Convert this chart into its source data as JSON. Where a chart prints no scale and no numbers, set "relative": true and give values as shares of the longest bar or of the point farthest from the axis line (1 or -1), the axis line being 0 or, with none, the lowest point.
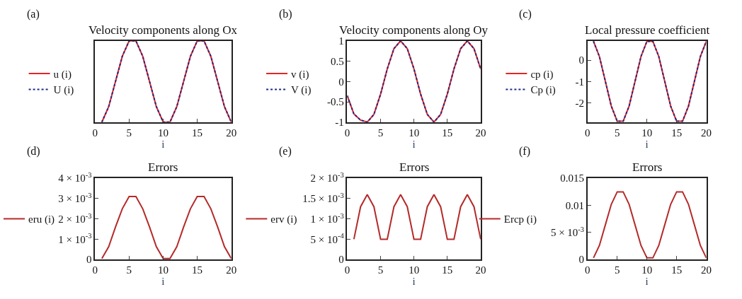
{
  "chart_data": [
    {
      "type": "line",
      "title": "Velocity components along Ox",
      "xlabel": "i",
      "annotations": [
        "(a)"
      ],
      "relative": true,
      "legend": "left",
      "x": [
        1,
        2,
        3,
        4,
        5,
        6,
        7,
        8,
        9,
        10,
        11,
        12,
        13,
        14,
        15,
        16,
        17,
        18,
        19,
        20
      ],
      "xlim": [
        0,
        20
      ],
      "xticks": [
        0,
        5,
        10,
        15,
        20
      ],
      "series": [
        {
          "name": "u (i)",
          "color": "#e32626",
          "line_style": "solid",
          "values": [
            0,
            0.19,
            0.5,
            0.81,
            1,
            1,
            0.81,
            0.5,
            0.19,
            0,
            0,
            0.19,
            0.5,
            0.81,
            1,
            1,
            0.81,
            0.5,
            0.19,
            0
          ]
        },
        {
          "name": "U (i)",
          "color": "#1f2a8c",
          "line_style": "dotted",
          "values": [
            0,
            0.19,
            0.5,
            0.81,
            1,
            1,
            0.81,
            0.5,
            0.19,
            0,
            0,
            0.19,
            0.5,
            0.81,
            1,
            1,
            0.81,
            0.5,
            0.19,
            0
          ]
        }
      ]
    },
    {
      "type": "line",
      "title": "Velocity components along Oy",
      "xlabel": "i",
      "annotations": [
        "(b)"
      ],
      "legend": "left",
      "x": [
        0,
        1,
        2,
        3,
        4,
        5,
        6,
        7,
        8,
        9,
        10,
        11,
        12,
        13,
        14,
        15,
        16,
        17,
        18,
        19,
        20
      ],
      "xlim": [
        0,
        20
      ],
      "xticks": [
        0,
        5,
        10,
        15,
        20
      ],
      "ylim": [
        -1,
        1
      ],
      "yticks": [
        -1,
        -0.5,
        0,
        0.5,
        1
      ],
      "series": [
        {
          "name": "v (i)",
          "color": "#e32626",
          "line_style": "solid",
          "values": [
            -0.35,
            -0.8,
            -0.95,
            -1,
            -0.81,
            -0.31,
            0.31,
            0.81,
            1,
            0.81,
            0.31,
            -0.31,
            -0.81,
            -1,
            -0.81,
            -0.31,
            0.31,
            0.81,
            1,
            0.81,
            0.31
          ]
        },
        {
          "name": "V (i)",
          "color": "#1f2a8c",
          "line_style": "dotted",
          "values": [
            -0.35,
            -0.8,
            -0.95,
            -1,
            -0.81,
            -0.31,
            0.31,
            0.81,
            1,
            0.81,
            0.31,
            -0.31,
            -0.81,
            -1,
            -0.81,
            -0.31,
            0.31,
            0.81,
            1,
            0.81,
            0.31
          ]
        }
      ]
    },
    {
      "type": "line",
      "title": "Local pressure coefficient",
      "xlabel": "i",
      "annotations": [
        "(c)"
      ],
      "legend": "left",
      "x": [
        1,
        2,
        3,
        4,
        5,
        6,
        7,
        8,
        9,
        10,
        11,
        12,
        13,
        14,
        15,
        16,
        17,
        18,
        19,
        20
      ],
      "xlim": [
        0,
        20
      ],
      "xticks": [
        0,
        5,
        10,
        15,
        20
      ],
      "ylim": [
        -2.9,
        0.9
      ],
      "yticks": [
        -2,
        -1,
        0
      ],
      "series": [
        {
          "name": "cp (i)",
          "color": "#e32626",
          "line_style": "solid",
          "values": [
            0.88,
            0.17,
            -0.99,
            -2.15,
            -2.86,
            -2.86,
            -2.15,
            -0.99,
            0.17,
            0.88,
            0.88,
            0.17,
            -0.99,
            -2.15,
            -2.86,
            -2.86,
            -2.15,
            -0.99,
            0.17,
            0.88
          ]
        },
        {
          "name": "Cp (i)",
          "color": "#1f2a8c",
          "line_style": "dotted",
          "values": [
            0.88,
            0.17,
            -0.99,
            -2.15,
            -2.86,
            -2.86,
            -2.15,
            -0.99,
            0.17,
            0.88,
            0.88,
            0.17,
            -0.99,
            -2.15,
            -2.86,
            -2.86,
            -2.15,
            -0.99,
            0.17,
            0.88
          ]
        }
      ]
    },
    {
      "type": "line",
      "title": "Errors",
      "xlabel": "i",
      "annotations": [
        "(d)"
      ],
      "legend": "left",
      "x": [
        1,
        2,
        3,
        4,
        5,
        6,
        7,
        8,
        9,
        10,
        11,
        12,
        13,
        14,
        15,
        16,
        17,
        18,
        19,
        20
      ],
      "xlim": [
        0,
        20
      ],
      "xticks": [
        0,
        5,
        10,
        15,
        20
      ],
      "ylim": [
        0,
        0.004
      ],
      "yticks": [
        0,
        {
          "value": 0.001,
          "label": "1 × 10$^{-3}$"
        },
        {
          "value": 0.002,
          "label": "2 × 10$^{-3}$"
        },
        {
          "value": 0.003,
          "label": "3 × 10$^{-3}$"
        },
        {
          "value": 0.004,
          "label": "4 × 10$^{-3}$"
        }
      ],
      "series": [
        {
          "name": "eru (i)",
          "color": "#b52a2a",
          "line_style": "solid",
          "values": [
            5e-05,
            0.00063,
            0.0016,
            0.0025,
            0.0031,
            0.0031,
            0.0025,
            0.0016,
            0.00063,
            5e-05,
            5e-05,
            0.00063,
            0.0016,
            0.0025,
            0.0031,
            0.0031,
            0.0025,
            0.0016,
            0.00063,
            5e-05
          ]
        }
      ]
    },
    {
      "type": "line",
      "title": "Errors",
      "xlabel": "i",
      "annotations": [
        "(e)"
      ],
      "legend": "left",
      "x": [
        1,
        2,
        3,
        4,
        5,
        6,
        7,
        8,
        9,
        10,
        11,
        12,
        13,
        14,
        15,
        16,
        17,
        18,
        19,
        20
      ],
      "xlim": [
        0,
        20
      ],
      "xticks": [
        0,
        5,
        10,
        15,
        20
      ],
      "ylim": [
        0,
        0.002
      ],
      "yticks": [
        0,
        {
          "value": 0.0005,
          "label": "5 × 10$^{-4}$"
        },
        {
          "value": 0.001,
          "label": "1 × 10$^{-3}$"
        },
        {
          "value": 0.0015,
          "label": "1.5 × 10$^{-3}$"
        },
        {
          "value": 0.002,
          "label": "2 × 10$^{-3}$"
        }
      ],
      "series": [
        {
          "name": "erv (i)",
          "color": "#b52a2a",
          "line_style": "solid",
          "values": [
            0.0005,
            0.0013,
            0.0016,
            0.0013,
            0.0005,
            0.0005,
            0.0013,
            0.0016,
            0.0013,
            0.0005,
            0.0005,
            0.0013,
            0.0016,
            0.0013,
            0.0005,
            0.0005,
            0.0013,
            0.0016,
            0.0013,
            0.0005
          ]
        }
      ]
    },
    {
      "type": "line",
      "title": "Errors",
      "xlabel": "i",
      "annotations": [
        "(f)"
      ],
      "legend": "left",
      "x": [
        1,
        2,
        3,
        4,
        5,
        6,
        7,
        8,
        9,
        10,
        11,
        12,
        13,
        14,
        15,
        16,
        17,
        18,
        19,
        20
      ],
      "xlim": [
        0,
        20
      ],
      "xticks": [
        0,
        5,
        10,
        15,
        20
      ],
      "ylim": [
        0,
        0.015
      ],
      "yticks": [
        0,
        {
          "value": 0.005,
          "label": "5 × 10$^{-3}$"
        },
        0.01,
        0.015
      ],
      "series": [
        {
          "name": "Ercp (i)",
          "color": "#b52a2a",
          "line_style": "solid",
          "values": [
            0.0003,
            0.0026,
            0.0064,
            0.0102,
            0.0125,
            0.0125,
            0.0102,
            0.0064,
            0.0026,
            0.0003,
            0.0003,
            0.0026,
            0.0064,
            0.0102,
            0.0125,
            0.0125,
            0.0102,
            0.0064,
            0.0026,
            0.0003
          ]
        }
      ]
    }
  ]
}
